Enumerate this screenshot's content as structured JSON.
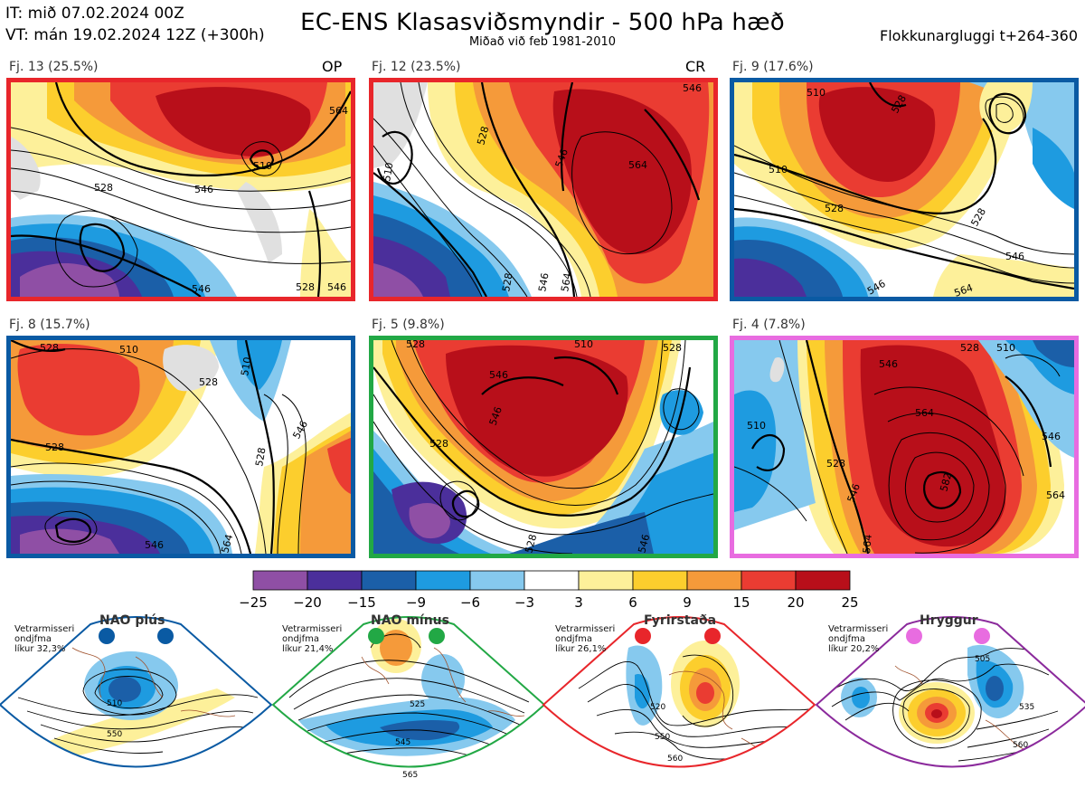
{
  "header": {
    "init_time": "IT: mið 07.02.2024 00Z",
    "valid_time": "VT: mán 19.02.2024 12Z  (+300h)",
    "title": "EC-ENS Klasasviðsmyndir - 500 hPa hæð",
    "subtitle": "Miðað við feb 1981-2010",
    "window": "Flokkunargluggi t+264-360"
  },
  "colors": {
    "red": "#e8262b",
    "blue": "#0a5aa3",
    "green": "#22a845",
    "pink": "#e86ce0",
    "purple": "#8b2a9c"
  },
  "clusters": [
    {
      "label": "Fj. 13 (25.5%)",
      "tag": "OP",
      "regime": "Fyrirstaða",
      "contours": [
        "528",
        "546",
        "510",
        "546",
        "528",
        "546",
        "564"
      ]
    },
    {
      "label": "Fj. 12 (23.5%)",
      "tag": "CR",
      "regime": "Fyrirstaða",
      "contours": [
        "528",
        "510",
        "546",
        "564",
        "528",
        "546",
        "564",
        "546"
      ]
    },
    {
      "label": "Fj. 9 (17.6%)",
      "tag": "",
      "regime": "NAO plús",
      "contours": [
        "510",
        "528",
        "510",
        "528",
        "528",
        "546",
        "546",
        "564"
      ]
    },
    {
      "label": "Fj. 8 (15.7%)",
      "tag": "",
      "regime": "NAO plús",
      "contours": [
        "528",
        "510",
        "528",
        "528",
        "510",
        "546",
        "528",
        "546",
        "564"
      ]
    },
    {
      "label": "Fj. 5 (9.8%)",
      "tag": "",
      "regime": "NAO mínus",
      "contours": [
        "528",
        "546",
        "546",
        "528",
        "510",
        "528",
        "546",
        "528"
      ]
    },
    {
      "label": "Fj. 4 (7.8%)",
      "tag": "",
      "regime": "Hryggur",
      "contours": [
        "528",
        "546",
        "510",
        "510",
        "564",
        "528",
        "546",
        "582",
        "546",
        "564",
        "564"
      ]
    }
  ],
  "colorbar": {
    "colors": [
      "#8f4fa5",
      "#4b2f9b",
      "#1b5fa8",
      "#1e9be0",
      "#86c9ee",
      "#ffffff",
      "#fdf09a",
      "#fcce2d",
      "#f59a3a",
      "#ea3c32",
      "#b80f1a"
    ],
    "ticks": [
      "−25",
      "−20",
      "−15",
      "−9",
      "−6",
      "−3",
      "3",
      "6",
      "9",
      "15",
      "20",
      "25"
    ]
  },
  "regimes": [
    {
      "name": "NAO plús",
      "note": [
        "Vetrarmisseri",
        "ondjfma",
        "líkur 32,3%"
      ],
      "contours": [
        "510",
        "550"
      ]
    },
    {
      "name": "NAO mínus",
      "note": [
        "Vetrarmisseri",
        "ondjfma",
        "líkur 21,4%"
      ],
      "contours": [
        "525",
        "545",
        "565"
      ]
    },
    {
      "name": "Fyrirstaða",
      "note": [
        "Vetrarmisseri",
        "ondjfma",
        "líkur 26,1%"
      ],
      "contours": [
        "520",
        "550",
        "560"
      ]
    },
    {
      "name": "Hryggur",
      "note": [
        "Vetrarmisseri",
        "ondjfma",
        "líkur 20,2%"
      ],
      "contours": [
        "505",
        "535",
        "560"
      ]
    }
  ]
}
